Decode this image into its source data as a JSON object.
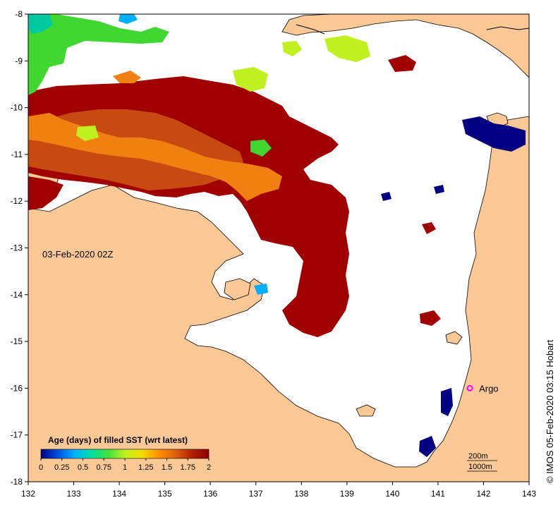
{
  "chart_data": {
    "type": "heatmap",
    "x_ticks": [
      "132",
      "133",
      "134",
      "135",
      "136",
      "137",
      "138",
      "139",
      "140",
      "141",
      "142",
      "143"
    ],
    "y_ticks": [
      "-8",
      "-9",
      "-10",
      "-11",
      "-12",
      "-13",
      "-14",
      "-15",
      "-16",
      "-17",
      "-18"
    ],
    "xlim": [
      132,
      143
    ],
    "ylim": [
      -18,
      -8
    ],
    "timestamp_label": "03-Feb-2020 02Z",
    "legend": {
      "title": "Age (days) of filled SST (wrt latest)",
      "ticks": [
        "0",
        "0.25",
        "0.5",
        "0.75",
        "1",
        "1.25",
        "1.5",
        "1.75",
        "2"
      ],
      "range": [
        0,
        2
      ],
      "colors": [
        "#000080",
        "#0050e0",
        "#00b0ff",
        "#00e0a0",
        "#40e040",
        "#c0f020",
        "#f0e000",
        "#ff9000",
        "#e06010",
        "#b02000",
        "#900000"
      ]
    },
    "argo": {
      "label": "Argo",
      "lon": 141.7,
      "lat": -16.0,
      "color": "#ff00ff"
    },
    "contours": [
      "200m",
      "1000m"
    ],
    "credit": "© IMOS 05-Feb-2020 03:15 Hobart",
    "colors": {
      "land": "#fcc896",
      "water": "#ffffff",
      "coast": "#000000"
    }
  }
}
